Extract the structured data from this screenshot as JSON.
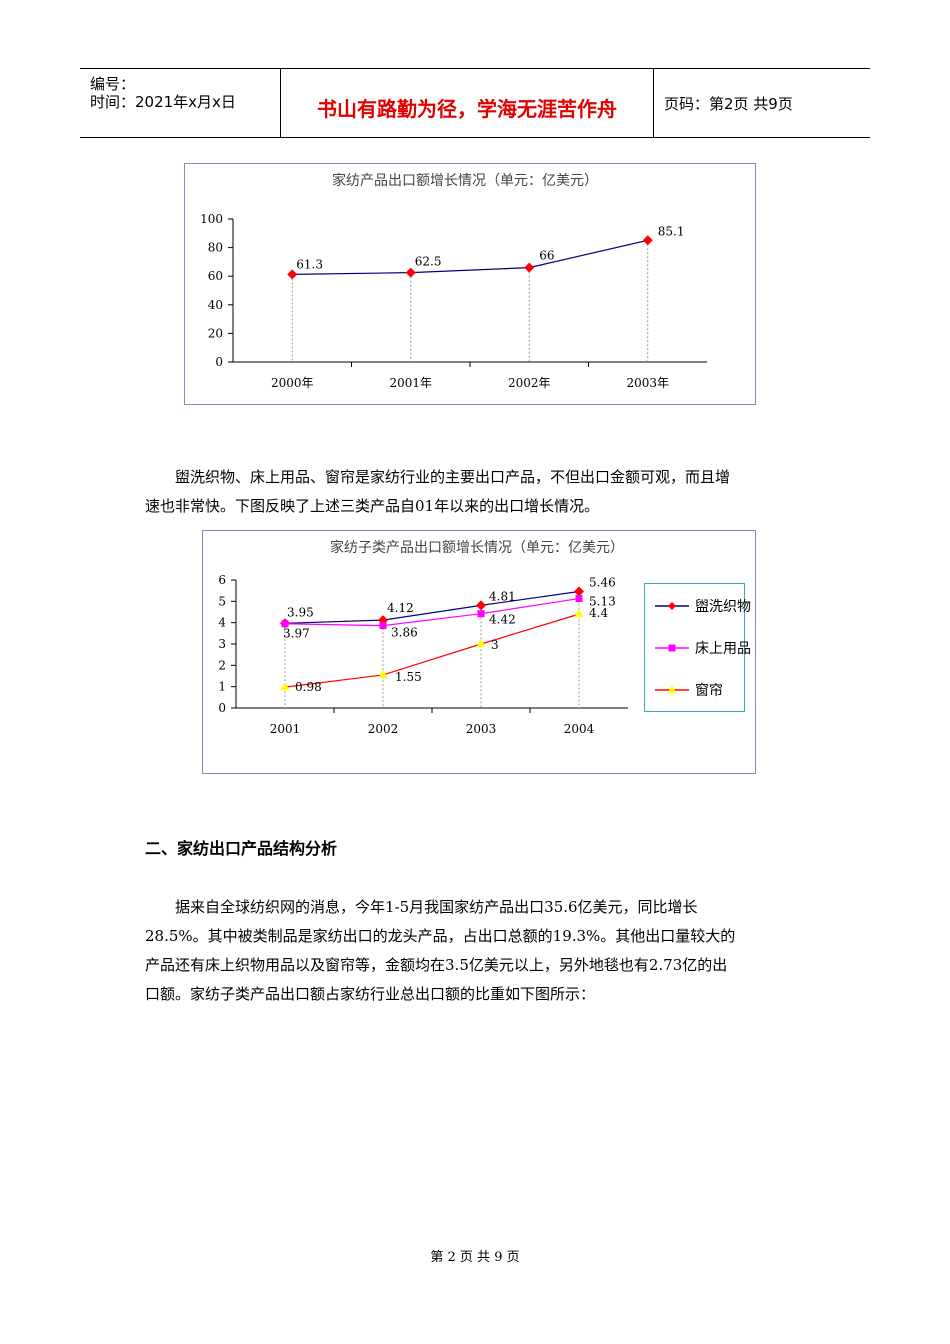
{
  "header": {
    "code_label": "编号：",
    "date_label": "时间：2021年x月x日",
    "motto": "书山有路勤为径，学海无涯苦作舟",
    "page_label": "页码：第2页  共9页"
  },
  "chart_data": [
    {
      "type": "line",
      "title": "家纺产品出口额增长情况（单元：亿美元）",
      "categories": [
        "2000年",
        "2001年",
        "2002年",
        "2003年"
      ],
      "series": [
        {
          "values": [
            61.3,
            62.5,
            66,
            85.1
          ],
          "color": "#000080",
          "marker_color": "#ff0000",
          "marker": "diamond"
        }
      ],
      "data_labels": [
        "61.3",
        "62.5",
        "66",
        "85.1"
      ],
      "y_ticks": [
        "0",
        "20",
        "40",
        "60",
        "80",
        "100"
      ],
      "ylim": [
        0,
        100
      ],
      "legend": "none",
      "drop_lines": true
    },
    {
      "type": "line",
      "title": "家纺子类产品出口额增长情况（单元：亿美元）",
      "categories": [
        "2001",
        "2002",
        "2003",
        "2004"
      ],
      "series": [
        {
          "name": "盥洗织物",
          "values": [
            3.97,
            4.12,
            4.81,
            5.46
          ],
          "color": "#000080",
          "marker_color": "#ff0000",
          "marker": "diamond"
        },
        {
          "name": "床上用品",
          "values": [
            3.95,
            3.86,
            4.42,
            5.13
          ],
          "color": "#ff00ff",
          "marker_color": "#ff00ff",
          "marker": "square"
        },
        {
          "name": "窗帘",
          "values": [
            0.98,
            1.55,
            3,
            4.4
          ],
          "color": "#ff0000",
          "marker_color": "#ffff00",
          "marker": "triangle"
        }
      ],
      "data_labels": {
        "盥洗织物": [
          "3.97",
          "4.12",
          "4.81",
          "5.46"
        ],
        "床上用品": [
          "3.95",
          "3.86",
          "4.42",
          "5.13"
        ],
        "窗帘": [
          "0.98",
          "1.55",
          "3",
          "4.4"
        ]
      },
      "y_ticks": [
        "0",
        "1",
        "2",
        "3",
        "4",
        "5",
        "6"
      ],
      "ylim": [
        0,
        6
      ],
      "legend": "right",
      "drop_lines": true
    }
  ],
  "para1": [
    "盥洗织物、床上用品、窗帘是家纺行业的主要出口产品，不但出口金额可观，而且增",
    "速也非常快。下图反映了上述三类产品自01年以来的出口增长情况。"
  ],
  "section_heading": "二、家纺出口产品结构分析",
  "para2": [
    "据来自全球纺织网的消息，今年1-5月我国家纺产品出口35.6亿美元，同比增长",
    "28.5%。其中被类制品是家纺出口的龙头产品，占出口总额的19.3%。其他出口量较大的",
    "产品还有床上织物用品以及窗帘等，金额均在3.5亿美元以上，另外地毯也有2.73亿的出",
    "口额。家纺子类产品出口额占家纺行业总出口额的比重如下图所示："
  ],
  "footer": "第 2 页 共 9 页"
}
